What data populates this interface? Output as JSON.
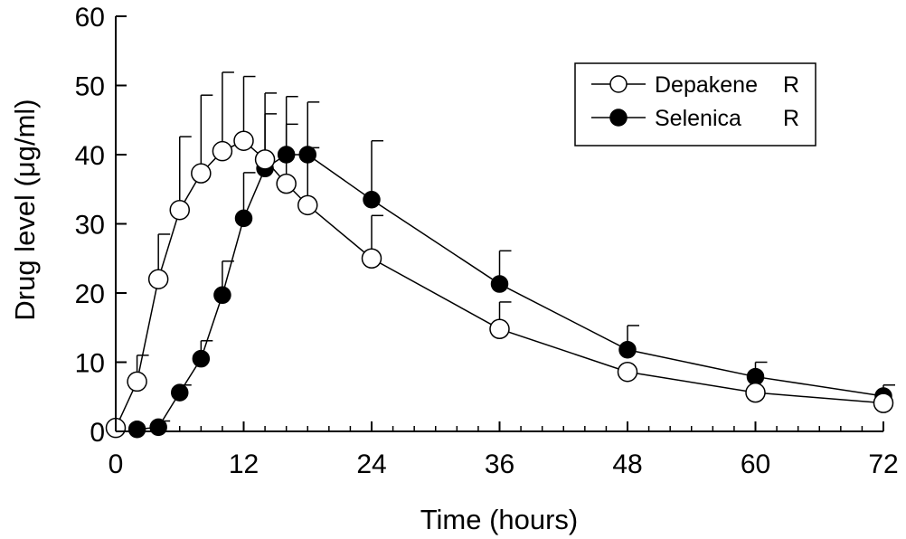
{
  "chart_data": {
    "type": "line",
    "xlabel": "Time (hours)",
    "ylabel": "Drug level (μg/ml)",
    "xlim": [
      0,
      72
    ],
    "ylim": [
      0,
      60
    ],
    "x_ticks": [
      0,
      12,
      24,
      36,
      48,
      60,
      72
    ],
    "y_ticks": [
      0,
      10,
      20,
      30,
      40,
      50,
      60
    ],
    "x_minor_step": 2,
    "grid": false,
    "legend_position": "top-right",
    "series": [
      {
        "name": "Depakene",
        "legend_suffix": "R",
        "marker": "open-circle",
        "x": [
          0,
          2,
          4,
          6,
          8,
          10,
          12,
          14,
          16,
          18,
          24,
          36,
          48,
          60,
          72
        ],
        "y": [
          0.5,
          7.2,
          22,
          32,
          37.3,
          40.5,
          42,
          39.3,
          35.8,
          32.7,
          25,
          14.8,
          8.6,
          5.6,
          4.1
        ],
        "error_upper": [
          null,
          11,
          28.5,
          42.6,
          48.6,
          51.9,
          51.3,
          48.9,
          48.4,
          47.6,
          31.2,
          18.7,
          null,
          null,
          null
        ]
      },
      {
        "name": "Selenica",
        "legend_suffix": "R",
        "marker": "filled-circle",
        "x": [
          2,
          4,
          6,
          8,
          10,
          12,
          14,
          16,
          18,
          24,
          36,
          48,
          60,
          72
        ],
        "y": [
          0.3,
          0.6,
          5.6,
          10.5,
          19.7,
          30.8,
          38,
          40,
          40,
          33.5,
          21.3,
          11.8,
          7.9,
          5.1
        ],
        "error_upper": [
          null,
          1.5,
          6.7,
          13.1,
          24.6,
          37.4,
          45.9,
          44.4,
          41,
          42,
          26.1,
          15.3,
          10,
          6.7
        ]
      }
    ]
  }
}
